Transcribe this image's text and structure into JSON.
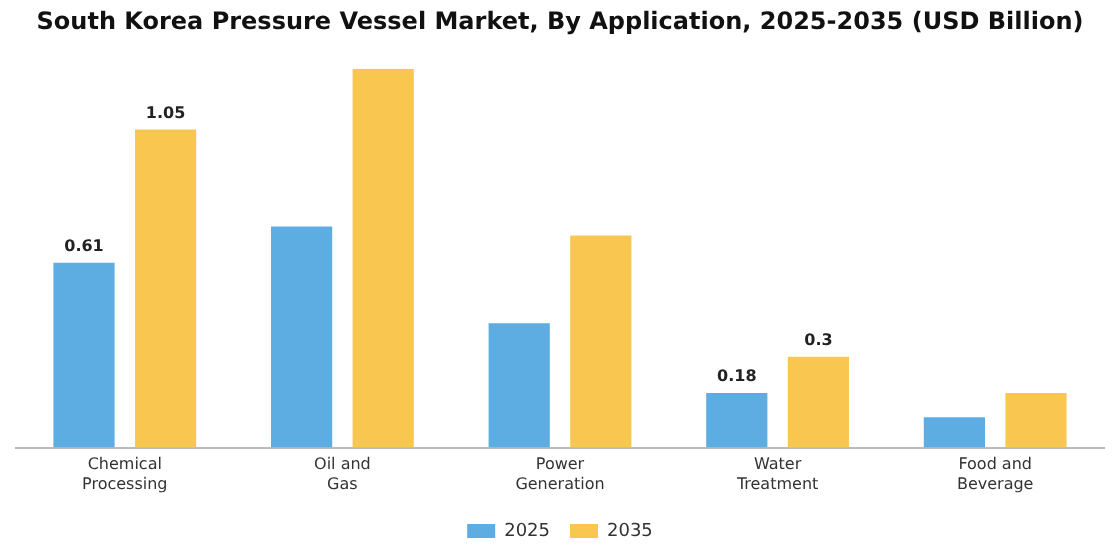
{
  "chart_data": {
    "type": "bar",
    "title": "South Korea Pressure Vessel Market, By Application, 2025-2035 (USD Billion)",
    "categories": [
      "Chemical Processing",
      "Oil and Gas",
      "Power Generation",
      "Water Treatment",
      "Food and Beverage"
    ],
    "series": [
      {
        "name": "2025",
        "color": "#5dade2",
        "values": [
          0.61,
          0.73,
          0.41,
          0.18,
          0.1
        ],
        "value_labels": [
          "0.61",
          null,
          null,
          "0.18",
          null
        ]
      },
      {
        "name": "2035",
        "color": "#f9c74f",
        "values": [
          1.05,
          1.25,
          0.7,
          0.3,
          0.18
        ],
        "value_labels": [
          "1.05",
          null,
          null,
          "0.3",
          null
        ]
      }
    ],
    "legend": "bottom",
    "grid": false
  }
}
